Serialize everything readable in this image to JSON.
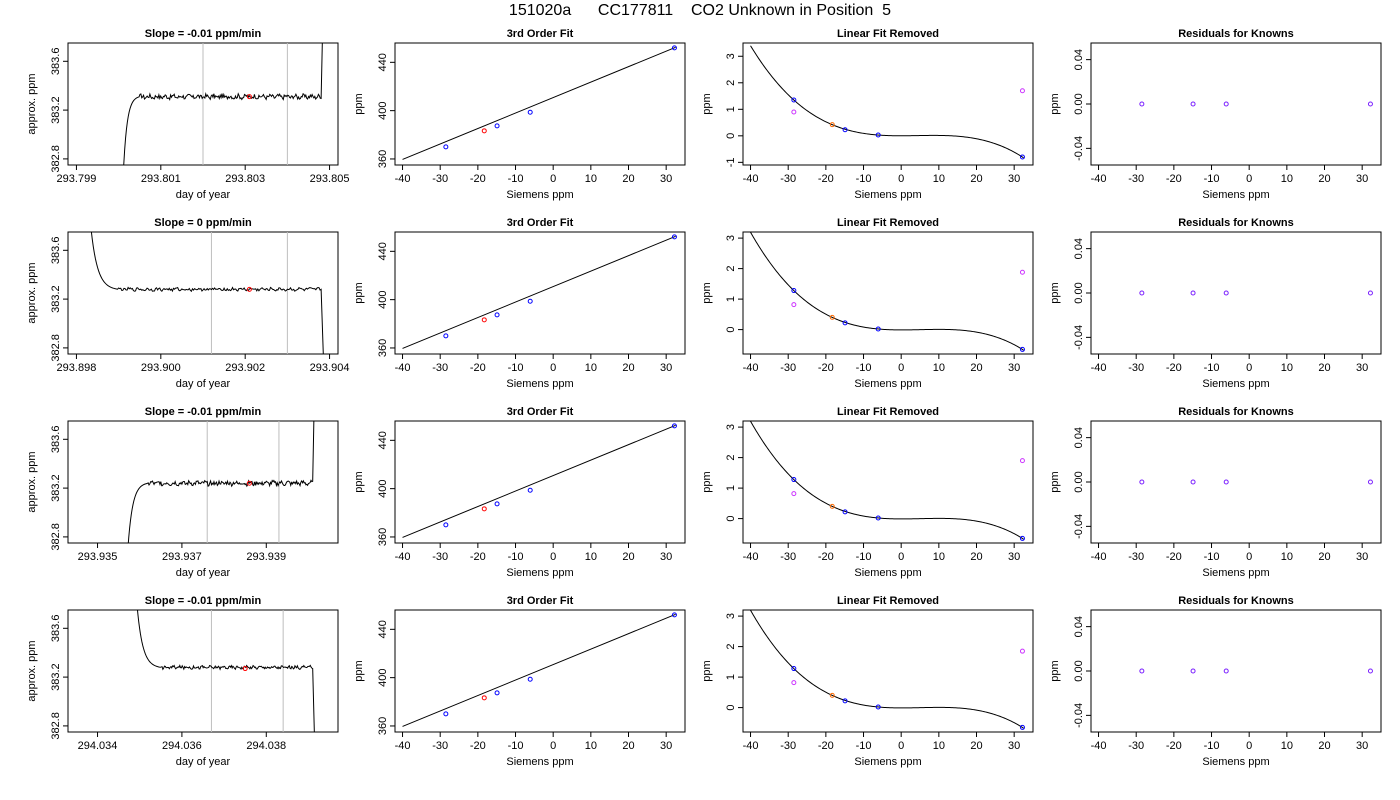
{
  "figure": {
    "title": "151020a      CC177811    CO2 Unknown in Position  5"
  },
  "chart_data": [
    {
      "type": "line",
      "panel": "time-series",
      "row": 1,
      "title": "Slope =  -0.01  ppm/min",
      "xlabel": "day of year",
      "ylabel": "approx. ppm",
      "xlim": [
        293.7988,
        293.8052
      ],
      "ylim": [
        382.75,
        383.75
      ],
      "xticks": [
        "293.799",
        "293.801",
        "293.803",
        "293.805"
      ],
      "xtick_values": [
        293.799,
        293.801,
        293.803,
        293.805
      ],
      "yticks": [
        "382.8",
        "383.2",
        "383.6"
      ],
      "ytick_values": [
        382.8,
        383.2,
        383.6
      ],
      "vlines": [
        293.802,
        293.804
      ],
      "marker": {
        "x": 293.8031,
        "y": 383.31
      },
      "trace": {
        "x0": 293.8001,
        "x1": 293.8048,
        "rise_end": 293.8005,
        "baseline": 383.31,
        "noise": 0.018,
        "start": 382.6,
        "end": 384.2,
        "end_rise": "up"
      }
    },
    {
      "type": "scatter",
      "panel": "third-order-fit",
      "row": 1,
      "title": "3rd Order Fit",
      "xlabel": "Siemens ppm",
      "ylabel": "ppm",
      "xlim": [
        -42,
        35
      ],
      "ylim": [
        355,
        456
      ],
      "xticks": [
        "-40",
        "-30",
        "-20",
        "-10",
        "0",
        "10",
        "20",
        "30"
      ],
      "xtick_values": [
        -40,
        -30,
        -20,
        -10,
        0,
        10,
        20,
        30
      ],
      "yticks": [
        "360",
        "400",
        "440"
      ],
      "ytick_values": [
        360,
        400,
        440
      ],
      "line": [
        [
          -40,
          359.6
        ],
        [
          32.5,
          452.4
        ]
      ],
      "points_blue": [
        [
          -28.5,
          370.0
        ],
        [
          -14.9,
          387.4
        ],
        [
          -6.1,
          398.7
        ],
        [
          32.2,
          452.0
        ]
      ],
      "points_red": [
        [
          -18.3,
          383.3
        ]
      ]
    },
    {
      "type": "scatter",
      "panel": "linear-fit-removed",
      "row": 1,
      "title": "Linear Fit Removed",
      "xlabel": "Siemens ppm",
      "ylabel": "ppm",
      "xlim": [
        -42,
        35
      ],
      "ylim": [
        -1.1,
        3.5
      ],
      "xticks": [
        "-40",
        "-30",
        "-20",
        "-10",
        "0",
        "10",
        "20",
        "30"
      ],
      "xtick_values": [
        -40,
        -30,
        -20,
        -10,
        0,
        10,
        20,
        30
      ],
      "yticks": [
        "-1",
        "0",
        "1",
        "2",
        "3"
      ],
      "ytick_values": [
        -1,
        0,
        1,
        2,
        3
      ],
      "curve": {
        "x0": -40,
        "x1": 32.5,
        "a": -4.848e-05,
        "b": 0.00058,
        "c": 0,
        "d": 0
      },
      "points_blue": [
        [
          -28.5,
          1.35
        ],
        [
          -14.9,
          0.23
        ],
        [
          -6.1,
          0.03
        ],
        [
          32.2,
          -0.8
        ]
      ],
      "points_orange": [
        [
          -18.3,
          0.42
        ]
      ],
      "points_magenta": [
        [
          -28.5,
          0.9
        ],
        [
          32.2,
          1.7
        ]
      ]
    },
    {
      "type": "scatter",
      "panel": "residuals",
      "row": 1,
      "title": "Residuals for Knowns",
      "xlabel": "Siemens ppm",
      "ylabel": "ppm",
      "xlim": [
        -42,
        35
      ],
      "ylim": [
        -0.055,
        0.055
      ],
      "xticks": [
        "-40",
        "-30",
        "-20",
        "-10",
        "0",
        "10",
        "20",
        "30"
      ],
      "xtick_values": [
        -40,
        -30,
        -20,
        -10,
        0,
        10,
        20,
        30
      ],
      "yticks": [
        "-0.04",
        "0.00",
        "0.04"
      ],
      "ytick_values": [
        -0.04,
        0,
        0.04
      ],
      "points": [
        [
          -28.5,
          0
        ],
        [
          -14.9,
          0
        ],
        [
          -6.1,
          0
        ],
        [
          32.2,
          0
        ]
      ]
    },
    {
      "type": "line",
      "panel": "time-series",
      "row": 2,
      "title": "Slope =  0  ppm/min",
      "xlabel": "day of year",
      "ylabel": "approx. ppm",
      "xlim": [
        293.8978,
        293.9042
      ],
      "ylim": [
        382.75,
        383.75
      ],
      "xticks": [
        "293.898",
        "293.900",
        "293.902",
        "293.904"
      ],
      "xtick_values": [
        293.898,
        293.9,
        293.902,
        293.904
      ],
      "yticks": [
        "382.8",
        "383.2",
        "383.6"
      ],
      "ytick_values": [
        382.8,
        383.2,
        383.6
      ],
      "vlines": [
        293.9012,
        293.903
      ],
      "marker": {
        "x": 293.9021,
        "y": 383.28
      },
      "trace": {
        "x0": 293.8983,
        "x1": 293.9038,
        "rise_end": 293.899,
        "baseline": 383.28,
        "noise": 0.012,
        "start": 383.95,
        "end": 382.6,
        "end_rise": "down"
      }
    },
    {
      "type": "scatter",
      "panel": "third-order-fit",
      "row": 2,
      "title": "3rd Order Fit",
      "xlabel": "Siemens ppm",
      "ylabel": "ppm",
      "xlim": [
        -42,
        35
      ],
      "ylim": [
        355,
        456
      ],
      "xticks": [
        "-40",
        "-30",
        "-20",
        "-10",
        "0",
        "10",
        "20",
        "30"
      ],
      "xtick_values": [
        -40,
        -30,
        -20,
        -10,
        0,
        10,
        20,
        30
      ],
      "yticks": [
        "360",
        "400",
        "440"
      ],
      "ytick_values": [
        360,
        400,
        440
      ],
      "line": [
        [
          -40,
          359.6
        ],
        [
          32.5,
          452.4
        ]
      ],
      "points_blue": [
        [
          -28.5,
          370.0
        ],
        [
          -14.9,
          387.4
        ],
        [
          -6.1,
          398.7
        ],
        [
          32.2,
          452.0
        ]
      ],
      "points_red": [
        [
          -18.3,
          383.3
        ]
      ]
    },
    {
      "type": "scatter",
      "panel": "linear-fit-removed",
      "row": 2,
      "title": "Linear Fit Removed",
      "xlabel": "Siemens ppm",
      "ylabel": "ppm",
      "xlim": [
        -42,
        35
      ],
      "ylim": [
        -0.8,
        3.2
      ],
      "xticks": [
        "-40",
        "-30",
        "-20",
        "-10",
        "0",
        "10",
        "20",
        "30"
      ],
      "xtick_values": [
        -40,
        -30,
        -20,
        -10,
        0,
        10,
        20,
        30
      ],
      "yticks": [
        "0",
        "1",
        "2",
        "3"
      ],
      "ytick_values": [
        0,
        1,
        2,
        3
      ],
      "curve": {
        "x0": -40,
        "x1": 32.5,
        "a": -4.45e-05,
        "b": 0.00055,
        "c": 0,
        "d": 0
      },
      "points_blue": [
        [
          -28.5,
          1.28
        ],
        [
          -14.9,
          0.22
        ],
        [
          -6.1,
          0.02
        ],
        [
          32.2,
          -0.65
        ]
      ],
      "points_orange": [
        [
          -18.3,
          0.4
        ]
      ],
      "points_magenta": [
        [
          -28.5,
          0.82
        ],
        [
          32.2,
          1.88
        ]
      ]
    },
    {
      "type": "scatter",
      "panel": "residuals",
      "row": 2,
      "title": "Residuals for Knowns",
      "xlabel": "Siemens ppm",
      "ylabel": "ppm",
      "xlim": [
        -42,
        35
      ],
      "ylim": [
        -0.055,
        0.055
      ],
      "xticks": [
        "-40",
        "-30",
        "-20",
        "-10",
        "0",
        "10",
        "20",
        "30"
      ],
      "xtick_values": [
        -40,
        -30,
        -20,
        -10,
        0,
        10,
        20,
        30
      ],
      "yticks": [
        "-0.04",
        "0.00",
        "0.04"
      ],
      "ytick_values": [
        -0.04,
        0,
        0.04
      ],
      "points": [
        [
          -28.5,
          0
        ],
        [
          -14.9,
          0
        ],
        [
          -6.1,
          0
        ],
        [
          32.2,
          0
        ]
      ]
    },
    {
      "type": "line",
      "panel": "time-series",
      "row": 3,
      "title": "Slope =  -0.01  ppm/min",
      "xlabel": "day of year",
      "ylabel": "approx. ppm",
      "xlim": [
        293.9343,
        293.9407
      ],
      "ylim": [
        382.75,
        383.75
      ],
      "xticks": [
        "293.935",
        "293.937",
        "293.939"
      ],
      "xtick_values": [
        293.935,
        293.937,
        293.939
      ],
      "yticks": [
        "382.8",
        "383.2",
        "383.6"
      ],
      "ytick_values": [
        382.8,
        383.2,
        383.6
      ],
      "vlines": [
        293.9376,
        293.9393
      ],
      "marker": {
        "x": 293.9386,
        "y": 383.24
      },
      "trace": {
        "x0": 293.9357,
        "x1": 293.9401,
        "rise_end": 293.9362,
        "baseline": 383.24,
        "noise": 0.018,
        "start": 382.6,
        "end": 384.2,
        "end_rise": "up"
      }
    },
    {
      "type": "scatter",
      "panel": "third-order-fit",
      "row": 3,
      "title": "3rd Order Fit",
      "xlabel": "Siemens ppm",
      "ylabel": "ppm",
      "xlim": [
        -42,
        35
      ],
      "ylim": [
        355,
        456
      ],
      "xticks": [
        "-40",
        "-30",
        "-20",
        "-10",
        "0",
        "10",
        "20",
        "30"
      ],
      "xtick_values": [
        -40,
        -30,
        -20,
        -10,
        0,
        10,
        20,
        30
      ],
      "yticks": [
        "360",
        "400",
        "440"
      ],
      "ytick_values": [
        360,
        400,
        440
      ],
      "line": [
        [
          -40,
          359.6
        ],
        [
          32.5,
          452.4
        ]
      ],
      "points_blue": [
        [
          -28.5,
          370.0
        ],
        [
          -14.9,
          387.4
        ],
        [
          -6.1,
          398.7
        ],
        [
          32.2,
          452.0
        ]
      ],
      "points_red": [
        [
          -18.3,
          383.3
        ]
      ]
    },
    {
      "type": "scatter",
      "panel": "linear-fit-removed",
      "row": 3,
      "title": "Linear Fit Removed",
      "xlabel": "Siemens ppm",
      "ylabel": "ppm",
      "xlim": [
        -42,
        35
      ],
      "ylim": [
        -0.8,
        3.2
      ],
      "xticks": [
        "-40",
        "-30",
        "-20",
        "-10",
        "0",
        "10",
        "20",
        "30"
      ],
      "xtick_values": [
        -40,
        -30,
        -20,
        -10,
        0,
        10,
        20,
        30
      ],
      "yticks": [
        "0",
        "1",
        "2",
        "3"
      ],
      "ytick_values": [
        0,
        1,
        2,
        3
      ],
      "curve": {
        "x0": -40,
        "x1": 32.5,
        "a": -4.45e-05,
        "b": 0.00055,
        "c": 0,
        "d": 0
      },
      "points_blue": [
        [
          -28.5,
          1.28
        ],
        [
          -14.9,
          0.22
        ],
        [
          -6.1,
          0.02
        ],
        [
          32.2,
          -0.65
        ]
      ],
      "points_orange": [
        [
          -18.3,
          0.4
        ]
      ],
      "points_magenta": [
        [
          -28.5,
          0.82
        ],
        [
          32.2,
          1.9
        ]
      ]
    },
    {
      "type": "scatter",
      "panel": "residuals",
      "row": 3,
      "title": "Residuals for Knowns",
      "xlabel": "Siemens ppm",
      "ylabel": "ppm",
      "xlim": [
        -42,
        35
      ],
      "ylim": [
        -0.055,
        0.055
      ],
      "xticks": [
        "-40",
        "-30",
        "-20",
        "-10",
        "0",
        "10",
        "20",
        "30"
      ],
      "xtick_values": [
        -40,
        -30,
        -20,
        -10,
        0,
        10,
        20,
        30
      ],
      "yticks": [
        "-0.04",
        "0.00",
        "0.04"
      ],
      "ytick_values": [
        -0.04,
        0,
        0.04
      ],
      "points": [
        [
          -28.5,
          0
        ],
        [
          -14.9,
          0
        ],
        [
          -6.1,
          0
        ],
        [
          32.2,
          0
        ]
      ]
    },
    {
      "type": "line",
      "panel": "time-series",
      "row": 4,
      "title": "Slope =  -0.01  ppm/min",
      "xlabel": "day of year",
      "ylabel": "approx. ppm",
      "xlim": [
        294.0333,
        294.0397
      ],
      "ylim": [
        382.75,
        383.75
      ],
      "xticks": [
        "294.034",
        "294.036",
        "294.038"
      ],
      "xtick_values": [
        294.034,
        294.036,
        294.038
      ],
      "yticks": [
        "382.8",
        "383.2",
        "383.6"
      ],
      "ytick_values": [
        382.8,
        383.2,
        383.6
      ],
      "vlines": [
        294.0367,
        294.0384
      ],
      "marker": {
        "x": 294.0375,
        "y": 383.27
      },
      "trace": {
        "x0": 294.0349,
        "x1": 294.0391,
        "rise_end": 294.0355,
        "baseline": 383.28,
        "noise": 0.012,
        "start": 383.95,
        "end": 382.6,
        "end_rise": "down"
      }
    },
    {
      "type": "scatter",
      "panel": "third-order-fit",
      "row": 4,
      "title": "3rd Order Fit",
      "xlabel": "Siemens ppm",
      "ylabel": "ppm",
      "xlim": [
        -42,
        35
      ],
      "ylim": [
        355,
        456
      ],
      "xticks": [
        "-40",
        "-30",
        "-20",
        "-10",
        "0",
        "10",
        "20",
        "30"
      ],
      "xtick_values": [
        -40,
        -30,
        -20,
        -10,
        0,
        10,
        20,
        30
      ],
      "yticks": [
        "360",
        "400",
        "440"
      ],
      "ytick_values": [
        360,
        400,
        440
      ],
      "line": [
        [
          -40,
          359.6
        ],
        [
          32.5,
          452.4
        ]
      ],
      "points_blue": [
        [
          -28.5,
          370.0
        ],
        [
          -14.9,
          387.4
        ],
        [
          -6.1,
          398.7
        ],
        [
          32.2,
          452.0
        ]
      ],
      "points_red": [
        [
          -18.3,
          383.3
        ]
      ]
    },
    {
      "type": "scatter",
      "panel": "linear-fit-removed",
      "row": 4,
      "title": "Linear Fit Removed",
      "xlabel": "Siemens ppm",
      "ylabel": "ppm",
      "xlim": [
        -42,
        35
      ],
      "ylim": [
        -0.8,
        3.2
      ],
      "xticks": [
        "-40",
        "-30",
        "-20",
        "-10",
        "0",
        "10",
        "20",
        "30"
      ],
      "xtick_values": [
        -40,
        -30,
        -20,
        -10,
        0,
        10,
        20,
        30
      ],
      "yticks": [
        "0",
        "1",
        "2",
        "3"
      ],
      "ytick_values": [
        0,
        1,
        2,
        3
      ],
      "curve": {
        "x0": -40,
        "x1": 32.5,
        "a": -4.45e-05,
        "b": 0.00055,
        "c": 0,
        "d": 0
      },
      "points_blue": [
        [
          -28.5,
          1.28
        ],
        [
          -14.9,
          0.22
        ],
        [
          -6.1,
          0.02
        ],
        [
          32.2,
          -0.65
        ]
      ],
      "points_orange": [
        [
          -18.3,
          0.4
        ]
      ],
      "points_magenta": [
        [
          -28.5,
          0.82
        ],
        [
          32.2,
          1.85
        ]
      ]
    },
    {
      "type": "scatter",
      "panel": "residuals",
      "row": 4,
      "title": "Residuals for Knowns",
      "xlabel": "Siemens ppm",
      "ylabel": "ppm",
      "xlim": [
        -42,
        35
      ],
      "ylim": [
        -0.055,
        0.055
      ],
      "xticks": [
        "-40",
        "-30",
        "-20",
        "-10",
        "0",
        "10",
        "20",
        "30"
      ],
      "xtick_values": [
        -40,
        -30,
        -20,
        -10,
        0,
        10,
        20,
        30
      ],
      "yticks": [
        "-0.04",
        "0.00",
        "0.04"
      ],
      "ytick_values": [
        -0.04,
        0,
        0.04
      ],
      "points": [
        [
          -28.5,
          0
        ],
        [
          -14.9,
          0
        ],
        [
          -6.1,
          0
        ],
        [
          32.2,
          0
        ]
      ]
    }
  ],
  "colors": {
    "axis": "#000000",
    "trace": "#000000",
    "vline": "#bebebe",
    "marker_red": "#ff0000",
    "point_blue": "#0000ff",
    "point_orange": "#ff6a00",
    "point_magenta": "#cc33ff",
    "residual_point": "#7a1fff"
  }
}
